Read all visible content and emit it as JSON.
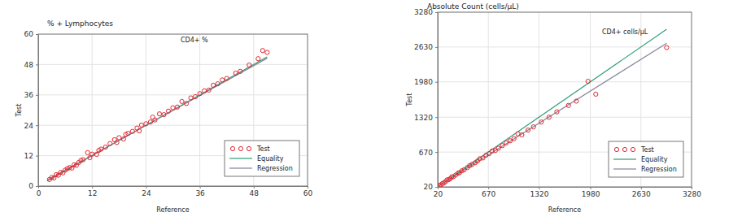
{
  "chart_data": [
    {
      "type": "scatter",
      "title": "% + Lymphocytes",
      "annotation": "CD4+ %",
      "xlabel": "Reference",
      "ylabel": "Test",
      "xlim": [
        0,
        60
      ],
      "ylim": [
        0,
        60
      ],
      "xticks": [
        0,
        12,
        24,
        36,
        48,
        60
      ],
      "yticks": [
        0,
        12,
        24,
        36,
        48,
        60
      ],
      "grid": true,
      "legend": "lower right",
      "series": [
        {
          "name": "Test",
          "type": "scatter",
          "color": "#e3262e",
          "marker": "circle",
          "x": [
            2.5,
            3,
            3.5,
            4,
            4.5,
            5,
            5.5,
            6,
            6.5,
            7,
            7.5,
            8,
            8.5,
            9,
            9.5,
            10,
            11,
            11.5,
            12,
            13,
            13.5,
            14,
            15,
            16,
            17,
            17.5,
            18,
            19,
            19.5,
            20,
            21,
            22,
            22.5,
            23,
            24,
            25,
            25.5,
            26,
            27,
            28,
            29,
            30,
            31,
            32,
            33,
            34,
            35,
            36,
            37,
            38,
            39,
            40,
            41,
            42,
            44,
            45,
            47,
            49,
            50,
            51
          ],
          "values": [
            2.6,
            3.4,
            3.2,
            4.5,
            4.3,
            5.4,
            5.2,
            6.3,
            6.9,
            7.3,
            7.1,
            8.4,
            8.2,
            9.3,
            10.1,
            10.4,
            13.2,
            11.2,
            12.6,
            12.5,
            14.1,
            14.6,
            15.4,
            16.8,
            18.3,
            17.2,
            19.1,
            18.6,
            20.4,
            20.8,
            21.6,
            22.9,
            21.8,
            24.1,
            24.6,
            25.3,
            27.2,
            26.1,
            28.5,
            28.2,
            29.6,
            30.9,
            31.2,
            33.4,
            32.6,
            34.8,
            35.3,
            36.5,
            37.6,
            37.9,
            39.8,
            40.4,
            41.9,
            42.5,
            44.6,
            45.3,
            47.8,
            50.3,
            53.5,
            52.8
          ]
        },
        {
          "name": "Equality",
          "type": "line",
          "color": "#2f9e78",
          "line_style": "solid",
          "x": [
            2,
            51
          ],
          "values": [
            2,
            51
          ]
        },
        {
          "name": "Regression",
          "type": "line",
          "color": "#85849a",
          "line_style": "solid",
          "x": [
            2,
            51
          ],
          "values": [
            2.3,
            50.5
          ]
        }
      ]
    },
    {
      "type": "scatter",
      "title": "Absolute Count (cells/µL)",
      "annotation": "CD4+ cells/µL",
      "xlabel": "Reference",
      "ylabel": "Test",
      "xlim": [
        20,
        3280
      ],
      "ylim": [
        20,
        3280
      ],
      "xticks": [
        20,
        670,
        1320,
        1980,
        2630,
        3280
      ],
      "yticks": [
        20,
        670,
        1320,
        1980,
        2630,
        3280
      ],
      "grid": true,
      "legend": "lower right",
      "series": [
        {
          "name": "Test",
          "type": "scatter",
          "color": "#e3262e",
          "marker": "circle",
          "x": [
            40,
            60,
            80,
            100,
            120,
            140,
            160,
            180,
            200,
            220,
            250,
            280,
            300,
            330,
            360,
            400,
            430,
            460,
            500,
            530,
            560,
            600,
            640,
            680,
            720,
            760,
            800,
            850,
            900,
            950,
            1000,
            1050,
            1100,
            1180,
            1250,
            1350,
            1450,
            1550,
            1700,
            1800,
            1950,
            2050,
            2960
          ],
          "values": [
            45,
            58,
            82,
            95,
            118,
            150,
            155,
            172,
            205,
            210,
            240,
            275,
            285,
            320,
            340,
            380,
            415,
            440,
            470,
            500,
            545,
            560,
            610,
            640,
            690,
            700,
            740,
            790,
            840,
            880,
            920,
            1010,
            990,
            1080,
            1140,
            1230,
            1320,
            1420,
            1540,
            1620,
            1990,
            1750,
            2620
          ]
        },
        {
          "name": "Equality",
          "type": "line",
          "color": "#2f9e78",
          "line_style": "solid",
          "x": [
            20,
            2960
          ],
          "values": [
            20,
            2960
          ]
        },
        {
          "name": "Regression",
          "type": "line",
          "color": "#85849a",
          "line_style": "solid",
          "x": [
            20,
            2960
          ],
          "values": [
            25,
            2700
          ]
        }
      ]
    }
  ]
}
